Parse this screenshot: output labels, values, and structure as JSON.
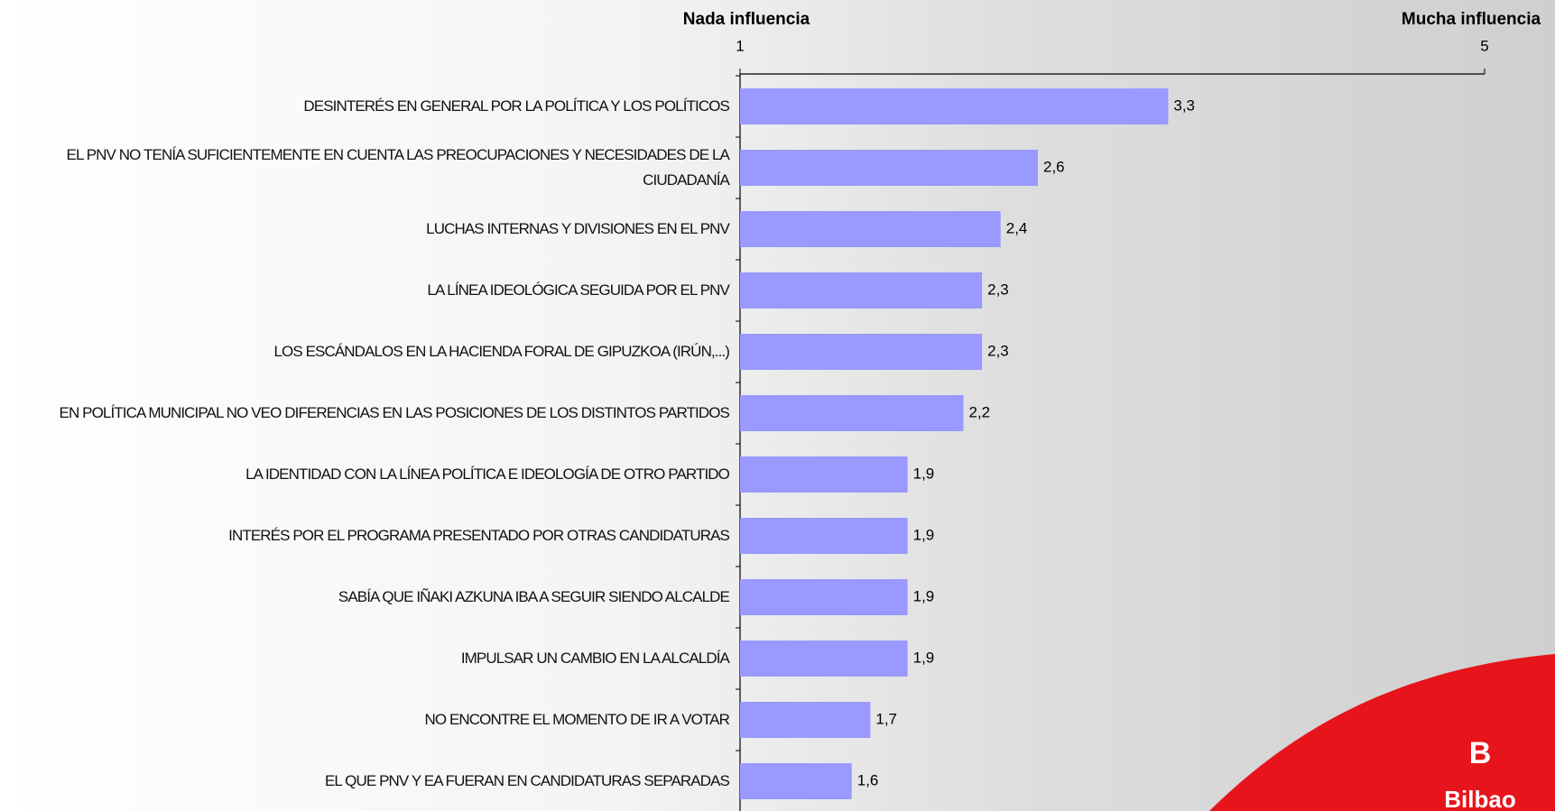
{
  "chart_data": {
    "type": "hbar",
    "xlabel_left": "Nada influencia",
    "xlabel_right": "Mucha influencia",
    "categories": [
      "DESINTERÉS EN GENERAL POR LA POLÍTICA Y LOS POLÍTICOS",
      "EL PNV NO TENÍA SUFICIENTEMENTE EN CUENTA LAS PREOCUPACIONES Y NECESIDADES DE LA CIUDADANÍA",
      "LUCHAS INTERNAS Y DIVISIONES EN EL PNV",
      "LA LÍNEA IDEOLÓGICA SEGUIDA POR EL PNV",
      "LOS ESCÁNDALOS EN LA HACIENDA FORAL DE GIPUZKOA (IRÚN,...)",
      "EN POLÍTICA MUNICIPAL NO VEO DIFERENCIAS EN LAS POSICIONES DE LOS DISTINTOS PARTIDOS",
      "LA IDENTIDAD CON LA LÍNEA POLÍTICA E IDEOLOGÍA DE OTRO PARTIDO",
      "INTERÉS POR EL PROGRAMA PRESENTADO POR OTRAS CANDIDATURAS",
      "SABÍA QUE IÑAKI AZKUNA IBA A SEGUIR SIENDO ALCALDE",
      "IMPULSAR UN CAMBIO EN LA ALCALDÍA",
      "NO ENCONTRE EL MOMENTO DE IR A VOTAR",
      "EL QUE PNV Y EA FUERAN EN CANDIDATURAS SEPARADAS"
    ],
    "values": [
      3.3,
      2.6,
      2.4,
      2.3,
      2.3,
      2.2,
      1.9,
      1.9,
      1.9,
      1.9,
      1.7,
      1.6
    ],
    "value_labels": [
      "3,3",
      "2,6",
      "2,4",
      "2,3",
      "2,3",
      "2,2",
      "1,9",
      "1,9",
      "1,9",
      "1,9",
      "1,7",
      "1,6"
    ],
    "color": "#9999ff",
    "xlim": [
      1,
      5
    ],
    "xticks": [
      1,
      5
    ]
  },
  "logo": {
    "letter": "B",
    "text": "Bilbao"
  }
}
